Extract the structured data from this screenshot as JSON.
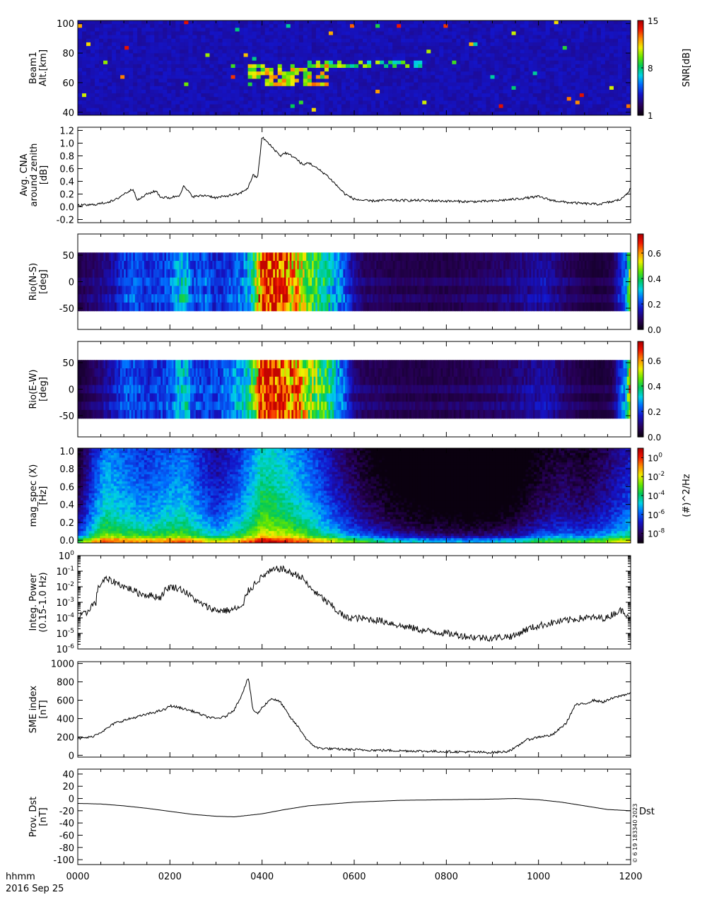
{
  "date_label": "2016 Sep 25",
  "time_axis_label": "hhmm",
  "x_ticks": [
    "0000",
    "0200",
    "0400",
    "0600",
    "0800",
    "1000",
    "1200"
  ],
  "footer_stamp": "© 6 19 183340 2023",
  "chart_data": [
    {
      "type": "heatmap",
      "ylabel": [
        "Beam1",
        "Alt.[km]"
      ],
      "yticks": [
        "40",
        "60",
        "80",
        "100"
      ],
      "ylim": [
        38,
        102
      ],
      "colorbar": {
        "label": "SNR[dB]",
        "ticks": [
          "1",
          "8",
          "15"
        ],
        "range": [
          1,
          15
        ]
      },
      "features": [
        {
          "t": [
            3.7,
            5.4
          ],
          "alt": [
            58,
            73
          ],
          "level": "high"
        },
        {
          "t": [
            5.0,
            7.5
          ],
          "alt": [
            70,
            76
          ],
          "level": "medium"
        }
      ]
    },
    {
      "type": "line",
      "ylabel": [
        "Avg. CNA",
        "around zenith",
        "[dB]"
      ],
      "yticks": [
        "-0.2",
        "0.0",
        "0.2",
        "0.4",
        "0.6",
        "0.8",
        "1.0",
        "1.2"
      ],
      "ylim": [
        -0.25,
        1.25
      ],
      "x": [
        0,
        0.3,
        0.5,
        0.8,
        1.0,
        1.2,
        1.3,
        1.5,
        1.7,
        1.8,
        2.0,
        2.2,
        2.3,
        2.5,
        2.8,
        3.0,
        3.3,
        3.5,
        3.7,
        3.8,
        3.9,
        4.0,
        4.2,
        4.4,
        4.5,
        4.7,
        4.9,
        5.0,
        5.2,
        5.4,
        5.6,
        5.8,
        6.0,
        6.3,
        6.6,
        7.0,
        7.5,
        8.0,
        8.5,
        9.0,
        9.5,
        10.0,
        10.3,
        10.6,
        11.0,
        11.3,
        11.6,
        11.8,
        11.9,
        12.0
      ],
      "y": [
        0.02,
        0.03,
        0.05,
        0.1,
        0.2,
        0.28,
        0.1,
        0.2,
        0.25,
        0.15,
        0.14,
        0.18,
        0.32,
        0.16,
        0.18,
        0.14,
        0.18,
        0.2,
        0.3,
        0.5,
        0.45,
        1.1,
        0.95,
        0.8,
        0.85,
        0.78,
        0.65,
        0.7,
        0.6,
        0.5,
        0.35,
        0.2,
        0.12,
        0.09,
        0.1,
        0.1,
        0.1,
        0.09,
        0.08,
        0.09,
        0.12,
        0.16,
        0.1,
        0.07,
        0.05,
        0.04,
        0.08,
        0.12,
        0.2,
        0.28
      ]
    },
    {
      "type": "heatmap",
      "ylabel": [
        "Rio(N-S)",
        "[deg]"
      ],
      "yticks": [
        "-50",
        "0",
        "50"
      ],
      "ylim": [
        -90,
        90
      ],
      "data_range": [
        -55,
        55
      ],
      "colorbar": {
        "ticks": [
          "0.0",
          "0.2",
          "0.4",
          "0.6"
        ],
        "range": [
          0,
          0.75
        ]
      },
      "x": [
        0,
        0.2,
        0.5,
        0.8,
        1.0,
        1.2,
        1.5,
        1.8,
        2.0,
        2.2,
        2.35,
        2.5,
        2.8,
        3.0,
        3.3,
        3.6,
        3.8,
        4.0,
        4.2,
        4.4,
        4.6,
        4.8,
        5.0,
        5.2,
        5.4,
        5.6,
        5.8,
        6.0,
        6.2,
        6.5,
        7.0,
        7.5,
        8.0,
        8.5,
        9.0,
        9.5,
        9.9,
        10.2,
        10.6,
        11.0,
        11.3,
        11.6,
        11.9,
        12.0
      ],
      "values": [
        0.05,
        0.08,
        0.1,
        0.14,
        0.2,
        0.22,
        0.18,
        0.2,
        0.22,
        0.3,
        0.32,
        0.2,
        0.22,
        0.18,
        0.2,
        0.25,
        0.35,
        0.7,
        0.75,
        0.72,
        0.6,
        0.55,
        0.45,
        0.4,
        0.35,
        0.28,
        0.22,
        0.12,
        0.08,
        0.07,
        0.06,
        0.06,
        0.06,
        0.07,
        0.08,
        0.1,
        0.12,
        0.13,
        0.08,
        0.05,
        0.04,
        0.06,
        0.25,
        0.5
      ]
    },
    {
      "type": "heatmap",
      "ylabel": [
        "Rio(E-W)",
        "[deg]"
      ],
      "yticks": [
        "-50",
        "0",
        "50"
      ],
      "ylim": [
        -90,
        90
      ],
      "data_range": [
        -55,
        55
      ],
      "colorbar": {
        "ticks": [
          "0.0",
          "0.2",
          "0.4",
          "0.6"
        ],
        "range": [
          0,
          0.75
        ]
      },
      "x": [
        0,
        0.2,
        0.5,
        0.8,
        1.0,
        1.2,
        1.5,
        1.8,
        2.0,
        2.2,
        2.35,
        2.5,
        2.8,
        3.0,
        3.3,
        3.6,
        3.8,
        4.0,
        4.2,
        4.4,
        4.6,
        4.8,
        5.0,
        5.2,
        5.4,
        5.6,
        5.8,
        6.0,
        6.2,
        6.5,
        7.0,
        7.5,
        8.0,
        8.5,
        9.0,
        9.5,
        9.9,
        10.2,
        10.6,
        11.0,
        11.3,
        11.6,
        11.9,
        12.0
      ],
      "values": [
        0.03,
        0.06,
        0.1,
        0.16,
        0.22,
        0.22,
        0.18,
        0.2,
        0.22,
        0.3,
        0.32,
        0.2,
        0.2,
        0.2,
        0.25,
        0.3,
        0.4,
        0.72,
        0.75,
        0.7,
        0.65,
        0.6,
        0.5,
        0.45,
        0.4,
        0.3,
        0.22,
        0.1,
        0.08,
        0.07,
        0.06,
        0.06,
        0.06,
        0.07,
        0.08,
        0.1,
        0.12,
        0.14,
        0.08,
        0.05,
        0.04,
        0.06,
        0.3,
        0.6
      ]
    },
    {
      "type": "heatmap",
      "ylabel": [
        "mag_spec (X)",
        "[Hz]"
      ],
      "yticks": [
        "0.0",
        "0.2",
        "0.4",
        "0.6",
        "0.8",
        "1.0"
      ],
      "ylim": [
        -0.03,
        1.03
      ],
      "colorbar": {
        "label": "(#)^2/Hz",
        "ticks": [
          "10^0",
          "10^-2",
          "10^-4",
          "10^-6",
          "10^-8"
        ],
        "log_range": [
          -9,
          1
        ]
      },
      "x": [
        0,
        0.3,
        0.6,
        1.0,
        1.5,
        2.0,
        2.3,
        2.6,
        3.0,
        3.5,
        3.8,
        4.0,
        4.3,
        4.6,
        5.0,
        5.4,
        5.8,
        6.3,
        7.0,
        7.5,
        8.0,
        8.5,
        9.0,
        9.5,
        10.0,
        10.5,
        11.0,
        11.5,
        12.0
      ],
      "low_freq_level": [
        -5,
        -3,
        -1.5,
        -2,
        -2.5,
        -2,
        -1.8,
        -2.5,
        -3.5,
        -2.5,
        -1.5,
        -0.5,
        -0.8,
        -1.2,
        -2,
        -3,
        -4,
        -5,
        -6,
        -6.3,
        -6.5,
        -6.6,
        -6.5,
        -6,
        -5,
        -4.5,
        -4.8,
        -4,
        -3
      ]
    },
    {
      "type": "line",
      "ylabel": [
        "Integ. Power",
        "(0.15-1.0 Hz)"
      ],
      "log_y": true,
      "yticks": [
        "10^-6",
        "10^-5",
        "10^-4",
        "10^-3",
        "10^-2",
        "10^-1",
        "10^0"
      ],
      "ylim_exp": [
        -6,
        0
      ],
      "x": [
        0,
        0.2,
        0.4,
        0.6,
        0.8,
        1.0,
        1.3,
        1.5,
        1.8,
        2.0,
        2.2,
        2.4,
        2.6,
        2.8,
        3.0,
        3.3,
        3.6,
        3.8,
        4.0,
        4.2,
        4.4,
        4.6,
        4.8,
        5.0,
        5.2,
        5.4,
        5.6,
        5.8,
        6.0,
        6.5,
        7.0,
        7.5,
        8.0,
        8.5,
        9.0,
        9.5,
        10.0,
        10.5,
        11.0,
        11.5,
        11.8,
        12.0
      ],
      "y": [
        0.0001,
        0.0002,
        0.001,
        0.03,
        0.02,
        0.01,
        0.004,
        0.003,
        0.002,
        0.01,
        0.008,
        0.003,
        0.001,
        0.0005,
        0.0003,
        0.0003,
        0.0005,
        0.01,
        0.04,
        0.1,
        0.15,
        0.08,
        0.05,
        0.01,
        0.003,
        0.001,
        0.0003,
        0.0001,
        0.0001,
        7e-05,
        3e-05,
        1.5e-05,
        1e-05,
        6e-06,
        5e-06,
        7e-06,
        3e-05,
        6e-05,
        0.0001,
        0.0001,
        0.0003,
        0.0001
      ]
    },
    {
      "type": "line",
      "ylabel": [
        "SME index",
        "[nT]"
      ],
      "yticks": [
        "0",
        "200",
        "400",
        "600",
        "800",
        "1000"
      ],
      "ylim": [
        -20,
        1020
      ],
      "x": [
        0,
        0.3,
        0.6,
        0.8,
        1.0,
        1.3,
        1.6,
        1.9,
        2.0,
        2.2,
        2.5,
        2.8,
        3.0,
        3.2,
        3.4,
        3.55,
        3.65,
        3.7,
        3.8,
        3.9,
        4.0,
        4.2,
        4.4,
        4.6,
        4.8,
        5.0,
        5.2,
        5.5,
        6.0,
        6.5,
        7.0,
        7.5,
        8.0,
        8.5,
        9.0,
        9.3,
        9.5,
        9.7,
        10.0,
        10.3,
        10.6,
        10.8,
        11.0,
        11.2,
        11.4,
        11.6,
        11.8,
        12.0
      ],
      "y": [
        180,
        200,
        280,
        350,
        380,
        420,
        460,
        500,
        540,
        520,
        480,
        420,
        400,
        420,
        500,
        650,
        780,
        850,
        500,
        450,
        520,
        620,
        580,
        420,
        300,
        150,
        80,
        70,
        60,
        55,
        50,
        45,
        40,
        35,
        30,
        40,
        80,
        160,
        200,
        220,
        350,
        550,
        560,
        600,
        580,
        620,
        650,
        680
      ]
    },
    {
      "type": "line",
      "ylabel": [
        "Prov. Dst",
        "[nT]"
      ],
      "yticks": [
        "-100",
        "-80",
        "-60",
        "-40",
        "-20",
        "0",
        "20",
        "40"
      ],
      "ylim": [
        -108,
        48
      ],
      "series_label": "Dst",
      "x": [
        0,
        0.5,
        1.0,
        1.5,
        2.0,
        2.5,
        3.0,
        3.4,
        4.0,
        4.5,
        5.0,
        6.0,
        7.0,
        8.0,
        9.0,
        9.5,
        10.0,
        10.5,
        11.0,
        11.5,
        12.0
      ],
      "y": [
        -8,
        -9,
        -12,
        -16,
        -21,
        -26,
        -29,
        -30,
        -25,
        -18,
        -12,
        -6,
        -3,
        -2,
        -1,
        0,
        -2,
        -6,
        -12,
        -18,
        -20
      ]
    }
  ]
}
